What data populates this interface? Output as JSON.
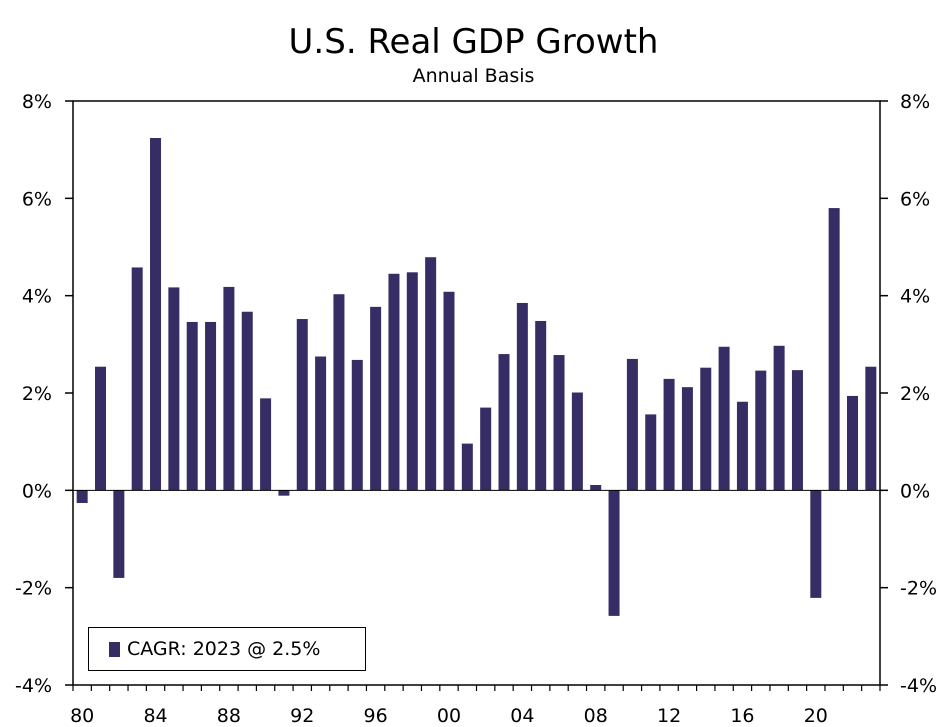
{
  "title": "U.S. Real GDP Growth",
  "subtitle": "Annual Basis",
  "colors": {
    "bar": "#372d65",
    "axis": "#000000"
  },
  "legend": {
    "label": "CAGR: 2023 @ 2.5%"
  },
  "chart_data": {
    "type": "bar",
    "title": "U.S. Real GDP Growth",
    "subtitle": "Annual Basis",
    "xlabel": "",
    "ylabel": "",
    "ylim": [
      -4,
      8
    ],
    "yticks": [
      -4,
      -2,
      0,
      2,
      4,
      6,
      8
    ],
    "ytick_labels": [
      "-4%",
      "-2%",
      "0%",
      "2%",
      "4%",
      "6%",
      "8%"
    ],
    "xtick_labels": [
      "80",
      "84",
      "88",
      "92",
      "96",
      "00",
      "04",
      "08",
      "12",
      "16",
      "20"
    ],
    "xtick_years": [
      1980,
      1984,
      1988,
      1992,
      1996,
      2000,
      2004,
      2008,
      2012,
      2016,
      2020
    ],
    "grid": false,
    "legend_position": "bottom-left",
    "categories": [
      1980,
      1981,
      1982,
      1983,
      1984,
      1985,
      1986,
      1987,
      1988,
      1989,
      1990,
      1991,
      1992,
      1993,
      1994,
      1995,
      1996,
      1997,
      1998,
      1999,
      2000,
      2001,
      2002,
      2003,
      2004,
      2005,
      2006,
      2007,
      2008,
      2009,
      2010,
      2011,
      2012,
      2013,
      2014,
      2015,
      2016,
      2017,
      2018,
      2019,
      2020,
      2021,
      2022,
      2023
    ],
    "series": [
      {
        "name": "CAGR: 2023 @ 2.5%",
        "values": [
          -0.26,
          2.54,
          -1.8,
          4.58,
          7.24,
          4.17,
          3.46,
          3.46,
          4.18,
          3.67,
          1.89,
          -0.11,
          3.52,
          2.75,
          4.03,
          2.68,
          3.77,
          4.45,
          4.48,
          4.79,
          4.08,
          0.96,
          1.7,
          2.8,
          3.85,
          3.48,
          2.78,
          2.01,
          0.11,
          -2.58,
          2.7,
          1.56,
          2.29,
          2.12,
          2.52,
          2.95,
          1.82,
          2.46,
          2.97,
          2.47,
          -2.21,
          5.8,
          1.94,
          2.54
        ]
      }
    ]
  }
}
